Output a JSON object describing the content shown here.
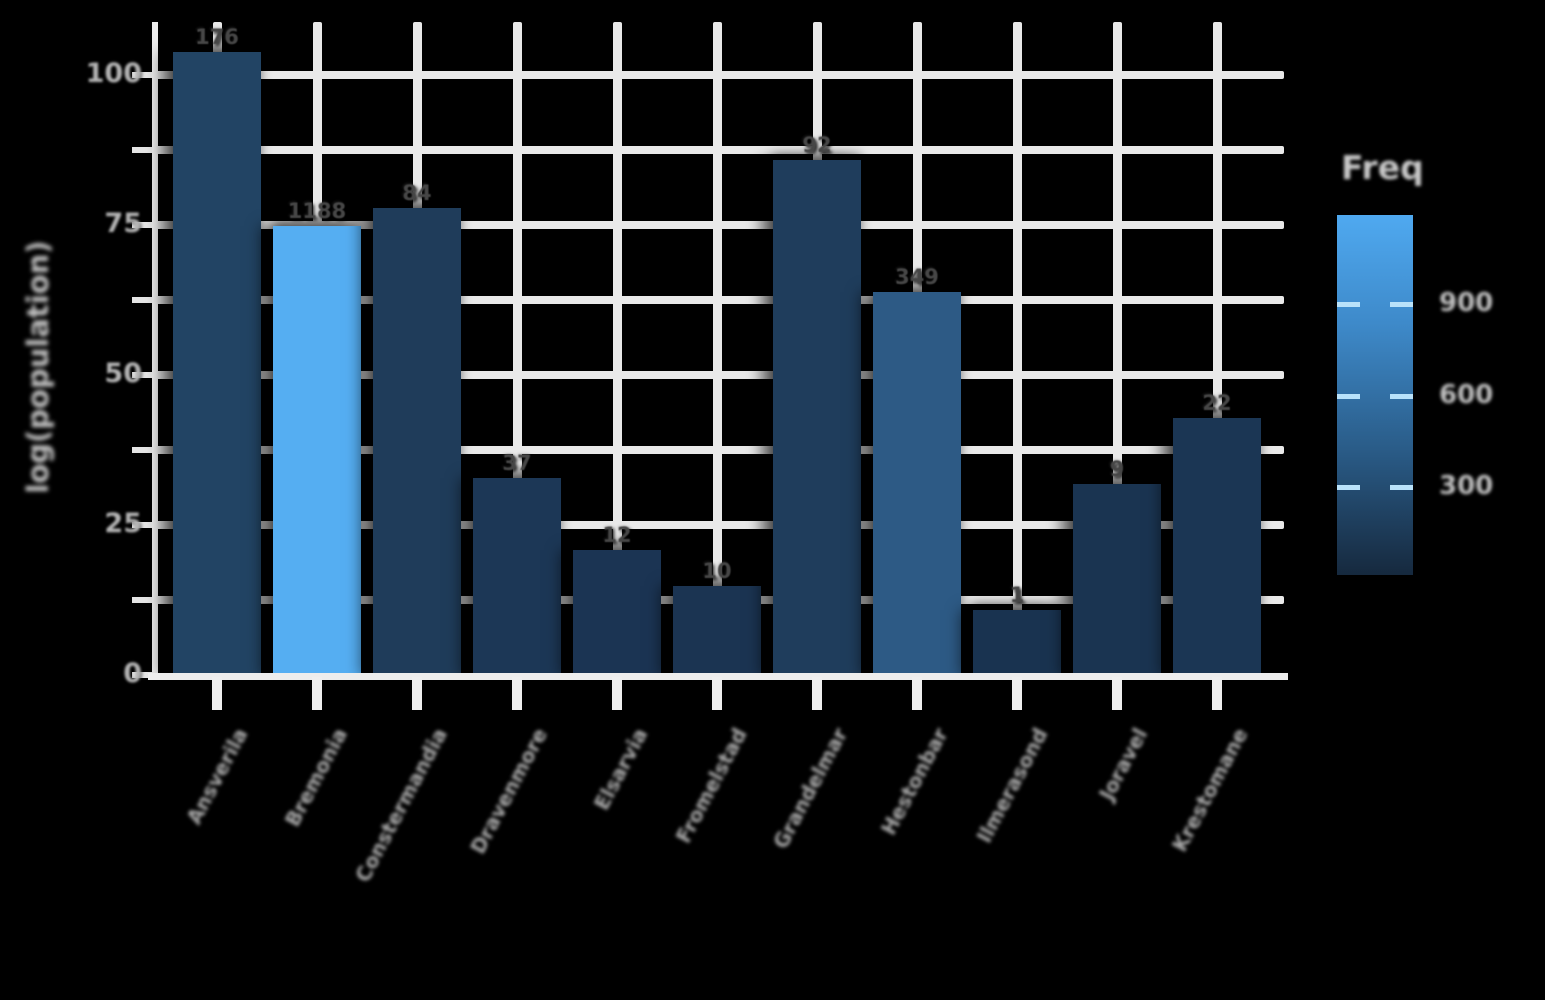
{
  "chart": {
    "legend": {
      "title": "Freq",
      "tick_labels": [
        "900",
        "600",
        "300"
      ]
    },
    "y_axis": {
      "title": "log(population)",
      "tick_labels": [
        "100",
        "75",
        "50",
        "25",
        "0"
      ]
    },
    "x_axis": {
      "labels_illegible": true,
      "tick_labels": [
        "Ansverila",
        "Bremonia",
        "Constermandia",
        "Dravenmore",
        "Elsarvia",
        "Fromelstad",
        "Grandelmar",
        "Hestonbar",
        "Ilmerasond",
        "Joravel",
        "Krestomane"
      ]
    },
    "bars": [
      {
        "category": "Ansverila",
        "freq_label": "176",
        "height_units": 104,
        "color": "#224464"
      },
      {
        "category": "Bremonia",
        "freq_label": "1188",
        "height_units": 75,
        "color": "#55aef2"
      },
      {
        "category": "Constermandia",
        "freq_label": "84",
        "height_units": 78,
        "color": "#1f3c5a"
      },
      {
        "category": "Dravenmore",
        "freq_label": "37",
        "height_units": 33,
        "color": "#1c3756"
      },
      {
        "category": "Elsarvia",
        "freq_label": "12",
        "height_units": 21,
        "color": "#1b3453"
      },
      {
        "category": "Fromelstad",
        "freq_label": "10",
        "height_units": 15,
        "color": "#1b3452"
      },
      {
        "category": "Grandelmar",
        "freq_label": "92",
        "height_units": 86,
        "color": "#1f3d5c"
      },
      {
        "category": "Hestonbar",
        "freq_label": "349",
        "height_units": 64,
        "color": "#2d5a85"
      },
      {
        "category": "Ilmerasond",
        "freq_label": "1",
        "height_units": 11,
        "color": "#193350"
      },
      {
        "category": "Joravel",
        "freq_label": "9",
        "height_units": 32,
        "color": "#1a3451"
      },
      {
        "category": "Krestomane",
        "freq_label": "22",
        "height_units": 43,
        "color": "#1b3654"
      }
    ],
    "colors": {
      "background": "#000000",
      "gridline": "#e9e9e9",
      "bar_dark": "#193350",
      "bar_light": "#55aef2",
      "axis_text": "#b5b5b5"
    }
  },
  "chart_data": {
    "type": "bar",
    "categories": [
      "Ansverila",
      "Bremonia",
      "Constermandia",
      "Dravenmore",
      "Elsarvia",
      "Fromelstad",
      "Grandelmar",
      "Hestonbar",
      "Ilmerasond",
      "Joravel",
      "Krestomane"
    ],
    "values": [
      104,
      75,
      78,
      33,
      21,
      15,
      86,
      64,
      11,
      32,
      43
    ],
    "bar_value_labels": [
      176,
      1188,
      84,
      37,
      12,
      10,
      92,
      349,
      1,
      9,
      22
    ],
    "title": "",
    "xlabel": "",
    "ylabel": "log(population)",
    "ylim": [
      0,
      110
    ],
    "yticks": [
      0,
      25,
      50,
      75,
      100
    ],
    "grid": true,
    "legend_position": "right",
    "color_encoding": {
      "variable": "Freq",
      "scale_min": 1,
      "scale_max": 1188,
      "colorbar_tick_values": [
        900,
        600,
        300
      ],
      "low_color": "#16293e",
      "high_color": "#4fa9f0"
    },
    "x_tick_labels_illegible_in_source": true
  }
}
